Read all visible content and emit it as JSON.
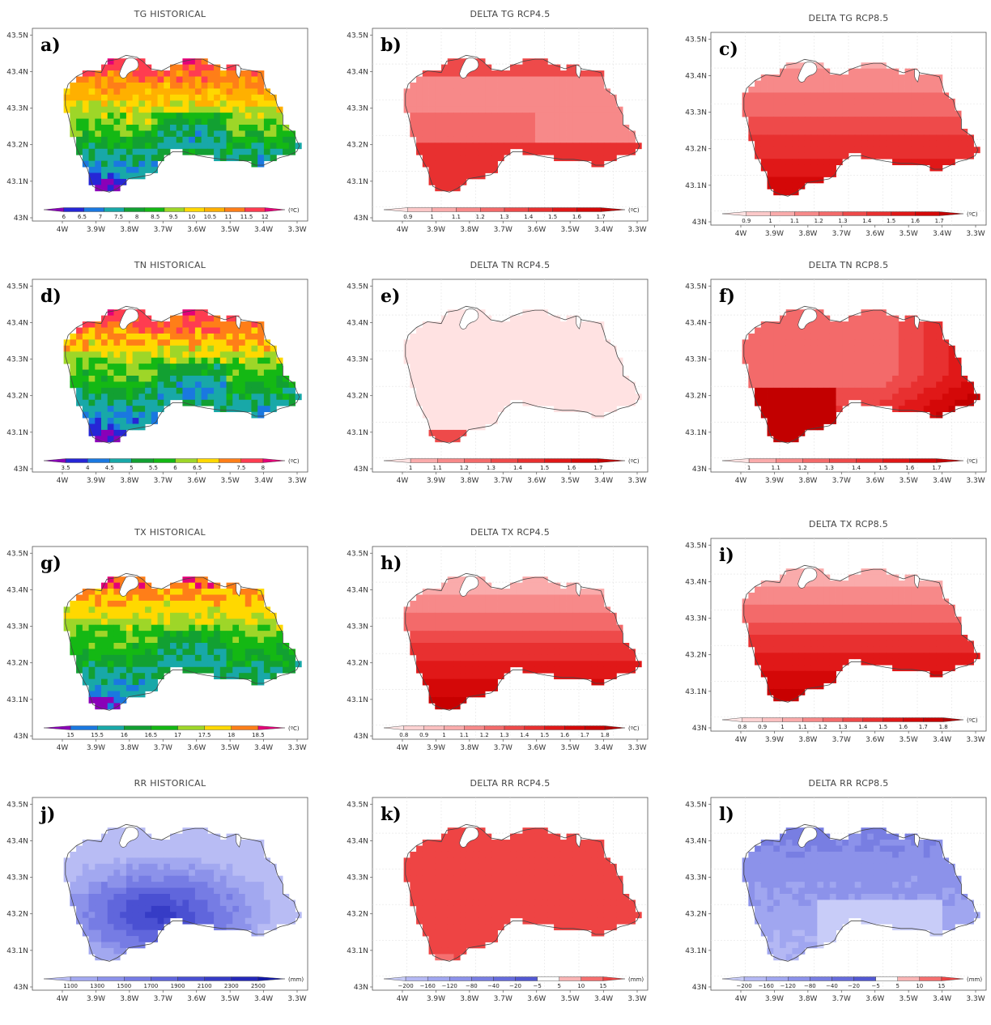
{
  "figure": {
    "lat_ticks": [
      "43N",
      "43.1N",
      "43.2N",
      "43.3N",
      "43.4N",
      "43.5N"
    ],
    "lon_ticks": [
      "4W",
      "3.9W",
      "3.8W",
      "3.7W",
      "3.6W",
      "3.5W",
      "3.4W",
      "3.3W"
    ]
  },
  "chart_data": [
    {
      "type": "heatmap",
      "panel": "a)",
      "title": "TG HISTORICAL",
      "unit": "(ºC)",
      "legend_labels": [
        "6",
        "6.5",
        "7",
        "7.5",
        "8",
        "8.5",
        "9.5",
        "10",
        "10.5",
        "11",
        "11.5",
        "12"
      ],
      "colors": [
        "#8a00b8",
        "#2626d6",
        "#1a78e0",
        "#18a8a8",
        "#12a032",
        "#14b814",
        "#9ed628",
        "#ffd800",
        "#ffb000",
        "#ff7e18",
        "#ff3c50",
        "#e40078"
      ],
      "field": "temp_high_north",
      "range": [
        6,
        12.5
      ],
      "grid": false
    },
    {
      "type": "heatmap",
      "panel": "b)",
      "title": "DELTA TG RCP4.5",
      "unit": "(ºC)",
      "legend_labels": [
        "0.9",
        "1",
        "1.1",
        "1.2",
        "1.3",
        "1.4",
        "1.5",
        "1.6",
        "1.7"
      ],
      "colors": [
        "#ffe2e2",
        "#fcc8c8",
        "#faabab",
        "#f78989",
        "#f36a6a",
        "#ee4a4a",
        "#e83030",
        "#e01818",
        "#d40808",
        "#c20000"
      ],
      "field": "delta_bands",
      "range": [
        0.95,
        1.25
      ],
      "grid": true
    },
    {
      "type": "heatmap",
      "panel": "c)",
      "title": "DELTA TG RCP8.5",
      "unit": "(ºC)",
      "legend_labels": [
        "0.9",
        "1",
        "1.1",
        "1.2",
        "1.3",
        "1.4",
        "1.5",
        "1.6",
        "1.7"
      ],
      "colors": [
        "#ffe2e2",
        "#fcc8c8",
        "#faabab",
        "#f78989",
        "#f36a6a",
        "#ee4a4a",
        "#e83030",
        "#e01818",
        "#d40808",
        "#c20000"
      ],
      "field": "delta_bands_south",
      "range": [
        1.48,
        1.72
      ],
      "grid": true
    },
    {
      "type": "heatmap",
      "panel": "d)",
      "title": "TN HISTORICAL",
      "unit": "(ºC)",
      "legend_labels": [
        "3.5",
        "4",
        "4.5",
        "5",
        "5.5",
        "6",
        "6.5",
        "7",
        "7.5",
        "8"
      ],
      "colors": [
        "#8a00b8",
        "#2626d6",
        "#1a78e0",
        "#18a8a8",
        "#12a032",
        "#14b814",
        "#9ed628",
        "#ffd800",
        "#ff7e18",
        "#ff3c50",
        "#e40078"
      ],
      "field": "temp_high_north",
      "range": [
        3.3,
        8.2
      ],
      "grid": false
    },
    {
      "type": "heatmap",
      "panel": "e)",
      "title": "DELTA TN RCP4.5",
      "unit": "(ºC)",
      "legend_labels": [
        "1",
        "1.1",
        "1.2",
        "1.3",
        "1.4",
        "1.5",
        "1.6",
        "1.7"
      ],
      "colors": [
        "#ffe2e2",
        "#faabab",
        "#f78989",
        "#f36a6a",
        "#ee4a4a",
        "#e83030",
        "#e01818",
        "#d40808",
        "#c20000"
      ],
      "field": "uniform_lightest",
      "range": [
        0.9,
        1.15
      ],
      "grid": true
    },
    {
      "type": "heatmap",
      "panel": "f)",
      "title": "DELTA TN RCP8.5",
      "unit": "(ºC)",
      "legend_labels": [
        "1",
        "1.1",
        "1.2",
        "1.3",
        "1.4",
        "1.5",
        "1.6",
        "1.7"
      ],
      "colors": [
        "#ffe2e2",
        "#faabab",
        "#f78989",
        "#f36a6a",
        "#ee4a4a",
        "#e83030",
        "#e01818",
        "#d40808",
        "#c20000"
      ],
      "field": "delta_se",
      "range": [
        1.55,
        1.72
      ],
      "grid": true
    },
    {
      "type": "heatmap",
      "panel": "g)",
      "title": "TX HISTORICAL",
      "unit": "(ºC)",
      "legend_labels": [
        "15",
        "15.5",
        "16",
        "16.5",
        "17",
        "17.5",
        "18",
        "18.5"
      ],
      "colors": [
        "#8a00b8",
        "#1a78e0",
        "#18a8a8",
        "#12a032",
        "#14b814",
        "#9ed628",
        "#ffd800",
        "#ff7e18",
        "#e40078"
      ],
      "field": "temp_high_north",
      "range": [
        14.8,
        18.6
      ],
      "grid": false
    },
    {
      "type": "heatmap",
      "panel": "h)",
      "title": "DELTA TX RCP4.5",
      "unit": "(ºC)",
      "legend_labels": [
        "0.8",
        "0.9",
        "1",
        "1.1",
        "1.2",
        "1.3",
        "1.4",
        "1.5",
        "1.6",
        "1.7",
        "1.8"
      ],
      "colors": [
        "#ffe6e6",
        "#ffd2d2",
        "#fcc0c0",
        "#faabab",
        "#f78989",
        "#f36a6a",
        "#ee4a4a",
        "#e83030",
        "#e01818",
        "#d40808",
        "#c80000",
        "#b40000"
      ],
      "field": "delta_bands_south",
      "range": [
        0.95,
        1.15
      ],
      "grid": true
    },
    {
      "type": "heatmap",
      "panel": "i)",
      "title": "DELTA TX RCP8.5",
      "unit": "(ºC)",
      "legend_labels": [
        "0.8",
        "0.9",
        "1",
        "1.1",
        "1.2",
        "1.3",
        "1.4",
        "1.5",
        "1.6",
        "1.7",
        "1.8"
      ],
      "colors": [
        "#ffe6e6",
        "#ffd2d2",
        "#fcc0c0",
        "#faabab",
        "#f78989",
        "#f36a6a",
        "#ee4a4a",
        "#e83030",
        "#e01818",
        "#d40808",
        "#c80000",
        "#b40000"
      ],
      "field": "delta_bands_south",
      "range": [
        1.45,
        1.75
      ],
      "grid": true
    },
    {
      "type": "heatmap",
      "panel": "j)",
      "title": "RR HISTORICAL",
      "unit": "(mm)",
      "legend_labels": [
        "1100",
        "1300",
        "1500",
        "1700",
        "1900",
        "2100",
        "2300",
        "2500"
      ],
      "colors": [
        "#b8bcf4",
        "#a2a8f0",
        "#8c92ea",
        "#767ce4",
        "#6066dc",
        "#4a50d2",
        "#363cc6",
        "#2428b8",
        "#1218a8"
      ],
      "field": "precip_hist",
      "range": [
        1050,
        2550
      ],
      "grid": false
    },
    {
      "type": "heatmap",
      "panel": "k)",
      "title": "DELTA RR RCP4.5",
      "unit": "(mm)",
      "legend_labels": [
        "−200",
        "−160",
        "−120",
        "−80",
        "−40",
        "−20",
        "−5",
        "5",
        "10",
        "15"
      ],
      "colors": [
        "#c8ccf8",
        "#b4b8f4",
        "#a0a6f0",
        "#8c92ea",
        "#787ee2",
        "#666cdc",
        "#5258d2",
        "#ffffff",
        "#f9b4b4",
        "#f57070",
        "#ee4444"
      ],
      "field": "uniform_top",
      "range": [
        0,
        1
      ],
      "grid": true
    },
    {
      "type": "heatmap",
      "panel": "l)",
      "title": "DELTA RR RCP8.5",
      "unit": "(mm)",
      "legend_labels": [
        "−200",
        "−160",
        "−120",
        "−80",
        "−40",
        "−20",
        "−5",
        "5",
        "10",
        "15"
      ],
      "colors": [
        "#c8ccf8",
        "#b4b8f4",
        "#a0a6f0",
        "#8c92ea",
        "#787ee2",
        "#666cdc",
        "#5258d2",
        "#ffffff",
        "#f9b4b4",
        "#f57070",
        "#ee4444"
      ],
      "field": "precip_delta",
      "range": [
        0,
        1
      ],
      "grid": true
    }
  ]
}
